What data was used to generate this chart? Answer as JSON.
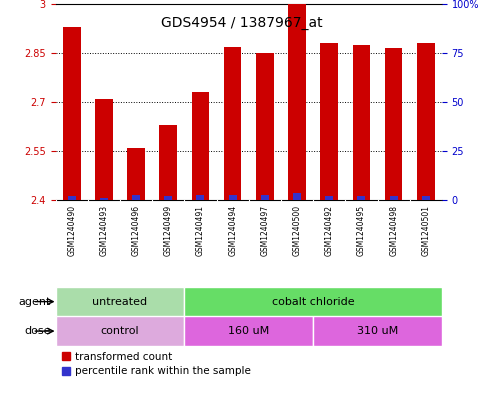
{
  "title": "GDS4954 / 1387967_at",
  "samples": [
    "GSM1240490",
    "GSM1240493",
    "GSM1240496",
    "GSM1240499",
    "GSM1240491",
    "GSM1240494",
    "GSM1240497",
    "GSM1240500",
    "GSM1240492",
    "GSM1240495",
    "GSM1240498",
    "GSM1240501"
  ],
  "red_values": [
    2.93,
    2.71,
    2.56,
    2.63,
    2.73,
    2.87,
    2.85,
    3.0,
    2.88,
    2.875,
    2.865,
    2.88
  ],
  "blue_percentiles": [
    2,
    1,
    3,
    2,
    3,
    3,
    3,
    4,
    2,
    2,
    2,
    2
  ],
  "ylim_left": [
    2.4,
    3.0
  ],
  "ylim_right": [
    0,
    100
  ],
  "yticks_left": [
    2.4,
    2.55,
    2.7,
    2.85,
    3.0
  ],
  "yticks_right": [
    0,
    25,
    50,
    75,
    100
  ],
  "ytick_labels_left": [
    "2.4",
    "2.55",
    "2.7",
    "2.85",
    "3"
  ],
  "ytick_labels_right": [
    "0",
    "25",
    "50",
    "75",
    "100%"
  ],
  "bar_bottom": 2.4,
  "red_color": "#cc0000",
  "blue_color": "#3333cc",
  "agent_groups": [
    {
      "label": "untreated",
      "start": 0,
      "end": 4,
      "color": "#aaddaa"
    },
    {
      "label": "cobalt chloride",
      "start": 4,
      "end": 12,
      "color": "#66dd66"
    }
  ],
  "dose_groups": [
    {
      "label": "control",
      "start": 0,
      "end": 4,
      "color": "#ddaadd"
    },
    {
      "label": "160 uM",
      "start": 4,
      "end": 8,
      "color": "#dd66dd"
    },
    {
      "label": "310 uM",
      "start": 8,
      "end": 12,
      "color": "#dd66dd"
    }
  ],
  "legend_red": "transformed count",
  "legend_blue": "percentile rank within the sample",
  "agent_label": "agent",
  "dose_label": "dose",
  "left_tick_color": "#cc0000",
  "right_tick_color": "#0000cc",
  "sample_bg_color": "#cccccc",
  "bg_color": "#ffffff",
  "title_fontsize": 10,
  "tick_fontsize": 7,
  "sample_fontsize": 5.5,
  "row_label_fontsize": 8,
  "legend_fontsize": 7.5
}
